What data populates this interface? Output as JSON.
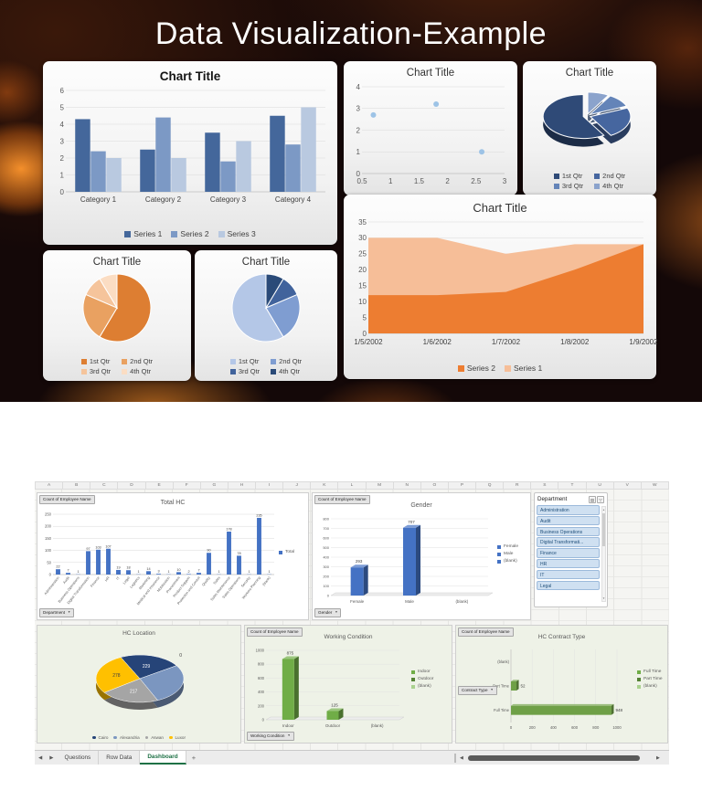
{
  "slide": {
    "title": "Data Visualization-Example"
  },
  "chart_data": [
    {
      "id": "slide_bar",
      "type": "bar",
      "title": "Chart Title",
      "categories": [
        "Category 1",
        "Category 2",
        "Category 3",
        "Category 4"
      ],
      "series": [
        {
          "name": "Series 1",
          "color": "#44679B",
          "values": [
            4.3,
            2.5,
            3.5,
            4.5
          ]
        },
        {
          "name": "Series 2",
          "color": "#7C99C5",
          "values": [
            2.4,
            4.4,
            1.8,
            2.8
          ]
        },
        {
          "name": "Series 3",
          "color": "#B9C9E0",
          "values": [
            2,
            2,
            3,
            5
          ]
        }
      ],
      "ylim": [
        0,
        6
      ],
      "ytick_step": 1,
      "grid": true,
      "legend_position": "bottom"
    },
    {
      "id": "slide_scatter",
      "type": "scatter",
      "title": "Chart Title",
      "points": [
        [
          0.7,
          2.7
        ],
        [
          1.8,
          3.2
        ],
        [
          2.6,
          1.0
        ]
      ],
      "xlim": [
        0.5,
        3
      ],
      "xticks": [
        0.5,
        1,
        1.5,
        2,
        2.5,
        3
      ],
      "ylim": [
        0,
        4
      ],
      "yticks": [
        0,
        1,
        2,
        3,
        4
      ],
      "color": "#9DC3E6",
      "grid": true
    },
    {
      "id": "slide_pie3d",
      "type": "pie",
      "variant": "3d-exploded",
      "title": "Chart Title",
      "labels": [
        "1st Qtr",
        "2nd Qtr",
        "3rd Qtr",
        "4th Qtr"
      ],
      "values": [
        8.2,
        3.2,
        1.4,
        1.2
      ],
      "colors": [
        "#2F4A77",
        "#46669F",
        "#6484B8",
        "#8BA3CC"
      ],
      "legend_position": "bottom"
    },
    {
      "id": "slide_pie_orange",
      "type": "pie",
      "title": "Chart Title",
      "labels": [
        "1st Qtr",
        "2nd Qtr",
        "3rd Qtr",
        "4th Qtr"
      ],
      "values": [
        8.2,
        3.2,
        1.4,
        1.2
      ],
      "colors": [
        "#DD7E32",
        "#E9A161",
        "#F5C49B",
        "#FBDDC3"
      ],
      "legend_position": "bottom"
    },
    {
      "id": "slide_pie_blue",
      "type": "pie",
      "title": "Chart Title",
      "labels": [
        "1st Qtr",
        "2nd Qtr",
        "3rd Qtr",
        "4th Qtr"
      ],
      "values": [
        8.2,
        3.2,
        1.4,
        1.2
      ],
      "colors": [
        "#B4C7E7",
        "#7F9DD1",
        "#41639C",
        "#2A4A78"
      ],
      "legend_position": "bottom"
    },
    {
      "id": "slide_area",
      "type": "area",
      "title": "Chart Title",
      "x": [
        "1/5/2002",
        "1/6/2002",
        "1/7/2002",
        "1/8/2002",
        "1/9/2002"
      ],
      "series": [
        {
          "name": "Series 1",
          "color": "#F6BE98",
          "values": [
            30,
            30,
            25,
            28,
            28
          ]
        },
        {
          "name": "Series 2",
          "color": "#ED7D31",
          "values": [
            12,
            12,
            13,
            20,
            28
          ]
        }
      ],
      "legend_order": [
        "Series 2",
        "Series 1"
      ],
      "ylim": [
        0,
        35
      ],
      "ytick_step": 5,
      "grid": true,
      "legend_position": "bottom"
    },
    {
      "id": "total_hc",
      "type": "bar",
      "title": "Total HC",
      "categories": [
        "Administration",
        "Audit",
        "Business Operations",
        "Digital Transformation",
        "Finance",
        "HR",
        "IT",
        "Legal",
        "Logistics",
        "Marketing",
        "Medical and Insurance",
        "Mobilization",
        "Procurement",
        "Product Support",
        "Protection and Control",
        "Quality",
        "Sales",
        "Sales Maintenance",
        "Sales Operations",
        "Security",
        "Workers Planning",
        "(blank)"
      ],
      "values": [
        22,
        7,
        1,
        97,
        103,
        107,
        19,
        18,
        1,
        14,
        3,
        1,
        10,
        2,
        7,
        90,
        1,
        178,
        78,
        1,
        235,
        1
      ],
      "color": "#4472C4",
      "ylim": [
        0,
        250
      ],
      "ytick_step": 50,
      "show_labels": true,
      "grid": true,
      "legend": [
        {
          "label": "Total",
          "color": "#4472C4"
        }
      ],
      "legend_position": "right"
    },
    {
      "id": "gender",
      "type": "column3d",
      "title": "Gender",
      "categories": [
        "Female",
        "Male",
        "(blank)"
      ],
      "values": [
        293,
        707,
        0
      ],
      "color": "#4472C4",
      "ylim": [
        0,
        800
      ],
      "ytick_step": 100,
      "show_labels": true,
      "grid": true,
      "legend": [
        {
          "label": "Female",
          "color": "#4472C4"
        },
        {
          "label": "Male",
          "color": "#4472C4"
        },
        {
          "label": "(blank)",
          "color": "#4472C4"
        }
      ],
      "legend_position": "right"
    },
    {
      "id": "hc_location",
      "type": "pie",
      "variant": "3d",
      "title": "HC Location",
      "labels": [
        "Cairo",
        "Alexandria",
        "Aswan",
        "Luxor"
      ],
      "values": [
        229,
        276,
        217,
        278
      ],
      "data_labels": [
        "229",
        "",
        "217",
        "278"
      ],
      "outside_label": "0",
      "colors": [
        "#264478",
        "#7B96C0",
        "#A5A5A5",
        "#FFC000"
      ],
      "legend_position": "bottom"
    },
    {
      "id": "working_condition",
      "type": "column3d",
      "title": "Working Condition",
      "categories": [
        "Indoor",
        "Outdoor",
        "(blank)"
      ],
      "values": [
        875,
        125,
        0
      ],
      "color": "#70AD47",
      "ylim": [
        0,
        1000
      ],
      "ytick_step": 200,
      "show_labels": true,
      "grid": true,
      "legend": [
        {
          "label": "Indoor",
          "color": "#70AD47"
        },
        {
          "label": "Outdoor",
          "color": "#548235"
        },
        {
          "label": "(blank)",
          "color": "#A9D18E"
        }
      ],
      "legend_position": "right"
    },
    {
      "id": "hc_contract_type",
      "type": "hbar",
      "title": "HC Contract Type",
      "categories": [
        "Full Time",
        "Part Time",
        "(blank)"
      ],
      "values": [
        948,
        52,
        0
      ],
      "data_labels": [
        "948",
        "52",
        ""
      ],
      "color": "#6FA047",
      "xlim": [
        0,
        1000
      ],
      "xtick_step": 200,
      "grid": true,
      "legend": [
        {
          "label": "Full Time",
          "color": "#70AD47"
        },
        {
          "label": "Part Time",
          "color": "#548235"
        },
        {
          "label": "(blank)",
          "color": "#A9D18E"
        }
      ],
      "legend_position": "right"
    }
  ],
  "workbook": {
    "column_headers": [
      "A",
      "B",
      "C",
      "D",
      "E",
      "F",
      "G",
      "H",
      "I",
      "J",
      "K",
      "L",
      "M",
      "N",
      "O",
      "P",
      "Q",
      "R",
      "S",
      "T",
      "U",
      "V",
      "W"
    ],
    "pivot": {
      "value_button": "Count of Employee Name",
      "axis_buttons": {
        "department": "Department",
        "gender": "Gender",
        "working_condition": "Working Condition",
        "contract_type": "Contract Type"
      }
    },
    "slicer": {
      "title": "Department",
      "items": [
        {
          "label": "Administration",
          "selected": true
        },
        {
          "label": "Audit",
          "selected": true
        },
        {
          "label": "Business Operations",
          "selected": true
        },
        {
          "label": "Digital Transformati...",
          "selected": true
        },
        {
          "label": "Finance",
          "selected": true
        },
        {
          "label": "HR",
          "selected": true
        },
        {
          "label": "IT",
          "selected": true
        },
        {
          "label": "Legal",
          "selected": true
        }
      ]
    },
    "sheet_tabs": {
      "tabs": [
        {
          "label": "Questions",
          "active": false
        },
        {
          "label": "Row Data",
          "active": false
        },
        {
          "label": "Dashboard",
          "active": true
        }
      ],
      "add_label": "+"
    }
  }
}
